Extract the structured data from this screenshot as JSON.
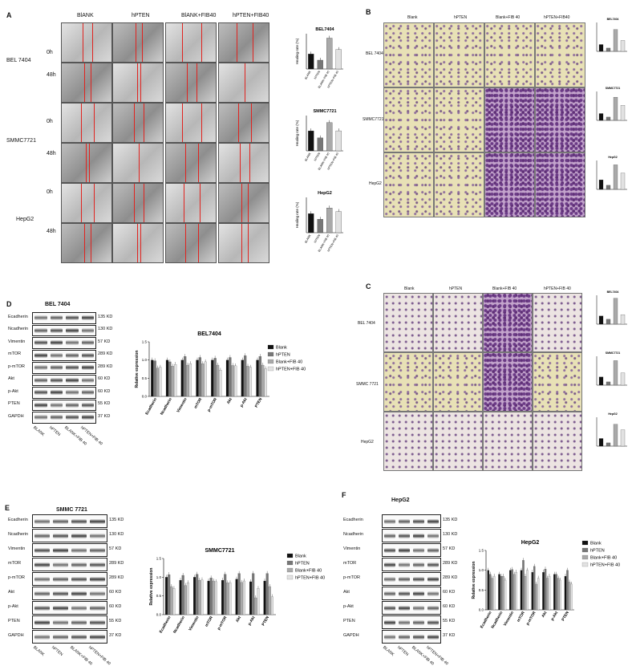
{
  "panels": {
    "A": "A",
    "B": "B",
    "C": "C",
    "D": "D",
    "E": "E",
    "F": "F"
  },
  "A": {
    "columns": [
      "BlANK",
      "hPTEN",
      "BlANK+FIB40",
      "hPTEN+FIB40"
    ],
    "cell_lines": [
      "BEL 7404",
      "SMMC7721",
      "HepG2"
    ],
    "timepoints": [
      "0h",
      "48h"
    ],
    "charts": [
      {
        "title": "BEL7404",
        "ylabel": "Healing rate (%)",
        "categories": [
          "BLANK",
          "hPTEN",
          "BLANK+FIB 40",
          "hPTEN+FIB 40"
        ]
      },
      {
        "title": "SMMC7721",
        "ylabel": "Healing rate (%)",
        "categories": [
          "BLANK",
          "hPTEN",
          "BLANK+FIB 40",
          "hPTEN+FIB 40"
        ]
      },
      {
        "title": "HepG2",
        "ylabel": "Healing rate (%)",
        "categories": [
          "BLANK",
          "hPTEN",
          "BLANK+FIB 40",
          "hPTEN+FIB 40"
        ]
      }
    ]
  },
  "B": {
    "columns": [
      "Blank",
      "hPTEN",
      "Blank+FIB 40",
      "hPTEN+FIB40"
    ],
    "rows": [
      "BEL 7404",
      "SMMC7721",
      "HepG2"
    ],
    "chart_titles": [
      "BEL7404",
      "SMMC7721",
      "HepG2"
    ]
  },
  "C": {
    "columns": [
      "Blank",
      "hPTEN",
      "Blank+FIB 40",
      "hPTEN+FIB 40"
    ],
    "rows": [
      "BEL 7404",
      "SMMC 7721",
      "HepG2"
    ],
    "chart_titles": [
      "BEL7404",
      "SMMC7721",
      "HepG2"
    ]
  },
  "D": {
    "blot_title": "BEL 7404",
    "proteins": [
      "Ecadherin",
      "Ncadherin",
      "Vimentin",
      "mTOR",
      "p-mTOR",
      "Akt",
      "p-Akt",
      "PTEN",
      "GAPDH"
    ],
    "kd": [
      "135 KD",
      "130 KD",
      "57 KD",
      "289 KD",
      "289 KD",
      "60 KD",
      "60 KD",
      "55 KD",
      "37 KD"
    ],
    "lanes": [
      "BLANK",
      "hPTEN",
      "BLANK+FIB 40",
      "hPTEN+FIB 40"
    ]
  },
  "E": {
    "blot_title": "SMMC 7721",
    "proteins": [
      "Ecadherin",
      "Ncadherin",
      "Vimentin",
      "mTOR",
      "p-mTOR",
      "Akt",
      "p-Akt",
      "PTEN",
      "GAPDH"
    ],
    "kd": [
      "135 KD",
      "130 KD",
      "57 KD",
      "289 KD",
      "289 KD",
      "60 KD",
      "60 KD",
      "55 KD",
      "37 KD"
    ],
    "lanes": [
      "BLANK",
      "hPTEN",
      "BLANK+FIB 40",
      "hPTEN+FIB 40"
    ]
  },
  "F": {
    "blot_title": "HepG2",
    "proteins": [
      "Ecadherin",
      "Ncadherin",
      "Vimentin",
      "mTOR",
      "p-mTOR",
      "Akt",
      "p-Akt",
      "PTEN",
      "GAPDH"
    ],
    "kd": [
      "135 KD",
      "130 KD",
      "57 KD",
      "289 KD",
      "289 KD",
      "60 KD",
      "60 KD",
      "55 KD",
      "37 KD"
    ],
    "lanes": [
      "BLANK",
      "hPTEN",
      "BLANK+FIB 40",
      "hPTEN+FIB 40"
    ]
  },
  "colors": {
    "blank": "#111111",
    "hpten": "#777777",
    "blank_fib": "#a9a9a9",
    "hpten_fib": "#e2e2e2",
    "scratch_line": "#e0231f"
  },
  "chart_data": [
    {
      "type": "bar",
      "title": "BEL7404",
      "xlabel": "",
      "ylabel": "Healing rate (%)",
      "categories": [
        "BLANK",
        "hPTEN",
        "BLANK+FIB 40",
        "hPTEN+FIB 40"
      ],
      "values": [
        0.17,
        0.1,
        0.35,
        0.22
      ],
      "ylim": [
        0,
        0.4
      ]
    },
    {
      "type": "bar",
      "title": "SMMC7721",
      "xlabel": "",
      "ylabel": "Healing rate (%)",
      "categories": [
        "BLANK",
        "hPTEN",
        "BLANK+FIB 40",
        "hPTEN+FIB 40"
      ],
      "values": [
        0.17,
        0.11,
        0.24,
        0.17
      ],
      "ylim": [
        0,
        0.3
      ]
    },
    {
      "type": "bar",
      "title": "HepG2",
      "xlabel": "",
      "ylabel": "Healing rate (%)",
      "categories": [
        "BLANK",
        "hPTEN",
        "BLANK+FIB 40",
        "hPTEN+FIB 40"
      ],
      "values": [
        0.27,
        0.19,
        0.35,
        0.3
      ],
      "ylim": [
        0,
        0.5
      ]
    },
    {
      "type": "bar",
      "title": "BEL7404",
      "ylabel": "Relative expression",
      "categories": [
        "Ecadherin",
        "Ncadherin",
        "Vimentin",
        "mTOR",
        "p-mTOR",
        "Akt",
        "p-Akt",
        "PTEN"
      ],
      "ylim": [
        0,
        1.5
      ],
      "series": [
        {
          "name": "Blank",
          "values": [
            1.0,
            1.0,
            1.0,
            1.0,
            1.0,
            1.0,
            1.0,
            1.0
          ]
        },
        {
          "name": "hPTEN",
          "values": [
            0.98,
            0.95,
            1.1,
            1.07,
            1.05,
            1.07,
            1.12,
            1.1
          ]
        },
        {
          "name": "Blank+FIB 40",
          "values": [
            0.78,
            0.83,
            0.86,
            0.9,
            0.86,
            0.85,
            0.83,
            0.86
          ]
        },
        {
          "name": "hPTEN+FIB 40",
          "values": [
            0.8,
            0.88,
            0.9,
            0.95,
            0.72,
            0.84,
            0.8,
            0.76
          ]
        }
      ]
    },
    {
      "type": "bar",
      "title": "SMMC7721",
      "ylabel": "Relative expression",
      "categories": [
        "Ecadherin",
        "Ncadherin",
        "Vimentin",
        "mTOR",
        "p-mTOR",
        "Akt",
        "p-Akt",
        "PTEN"
      ],
      "ylim": [
        0,
        1.5
      ],
      "series": [
        {
          "name": "Blank",
          "values": [
            1.0,
            0.92,
            1.0,
            0.9,
            0.92,
            0.95,
            0.88,
            0.9
          ]
        },
        {
          "name": "hPTEN",
          "values": [
            1.07,
            1.05,
            1.08,
            0.98,
            1.08,
            1.1,
            1.1,
            1.1
          ]
        },
        {
          "name": "Blank+FIB 40",
          "values": [
            0.75,
            0.78,
            0.92,
            0.9,
            0.85,
            0.86,
            0.45,
            0.75
          ]
        },
        {
          "name": "hPTEN+FIB 40",
          "values": [
            0.7,
            0.85,
            0.93,
            0.88,
            0.85,
            0.9,
            0.7,
            0.48
          ]
        }
      ]
    },
    {
      "type": "bar",
      "title": "HepG2",
      "ylabel": "Relative expression",
      "categories": [
        "Ecadherin",
        "Ncadherin",
        "Vimentin",
        "mTOR",
        "p-mTOR",
        "Akt",
        "p-Akt",
        "PTEN"
      ],
      "ylim": [
        0,
        1.5
      ],
      "series": [
        {
          "name": "Blank",
          "values": [
            1.0,
            0.9,
            1.0,
            1.0,
            0.95,
            0.95,
            0.9,
            0.85
          ]
        },
        {
          "name": "hPTEN",
          "values": [
            0.9,
            0.85,
            1.02,
            1.25,
            1.1,
            1.03,
            0.9,
            1.0
          ]
        },
        {
          "name": "Blank+FIB 40",
          "values": [
            0.8,
            0.85,
            0.9,
            0.85,
            0.65,
            0.8,
            0.8,
            0.7
          ]
        },
        {
          "name": "hPTEN+FIB 40",
          "values": [
            0.85,
            0.75,
            0.95,
            1.0,
            0.8,
            0.85,
            0.75,
            0.65
          ]
        }
      ]
    }
  ]
}
